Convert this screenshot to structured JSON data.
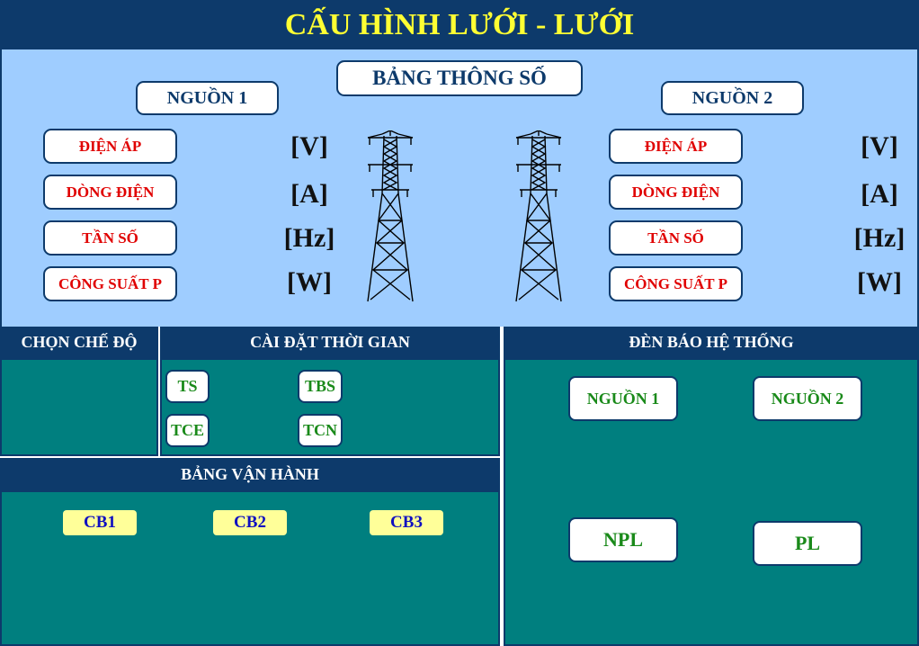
{
  "title": "CẤU HÌNH LƯỚI - LƯỚI",
  "params_title": "BẢNG THÔNG SỐ",
  "source1": {
    "label": "NGUỒN 1",
    "rows": [
      {
        "name": "ĐIỆN ÁP",
        "unit": "[V]"
      },
      {
        "name": "DÒNG ĐIỆN",
        "unit": "[A]"
      },
      {
        "name": "TẦN SỐ",
        "unit": "[Hz]"
      },
      {
        "name": "CÔNG SUẤT P",
        "unit": "[W]"
      }
    ]
  },
  "source2": {
    "label": "NGUỒN 2",
    "rows": [
      {
        "name": "ĐIỆN ÁP",
        "unit": "[V]"
      },
      {
        "name": "DÒNG ĐIỆN",
        "unit": "[A]"
      },
      {
        "name": "TẦN SỐ",
        "unit": "[Hz]"
      },
      {
        "name": "CÔNG SUẤT P",
        "unit": "[W]"
      }
    ]
  },
  "mode": {
    "header": "CHỌN CHẾ ĐỘ"
  },
  "time_settings": {
    "header": "CÀI ĐẶT THỜI GIAN",
    "buttons": [
      "TS",
      "TBS",
      "TCE",
      "TCN"
    ]
  },
  "operation": {
    "header": "BẢNG VẬN HÀNH",
    "breakers": [
      "CB1",
      "CB2",
      "CB3"
    ]
  },
  "indicators": {
    "header": "ĐÈN BÁO HỆ THỐNG",
    "lights": [
      "NGUỒN 1",
      "NGUỒN 2",
      "NPL",
      "PL"
    ]
  },
  "colors": {
    "navy": "#0d3a6b",
    "panel_blue": "#9fcdff",
    "teal": "#007f7f",
    "title_yellow": "#ffff33"
  }
}
